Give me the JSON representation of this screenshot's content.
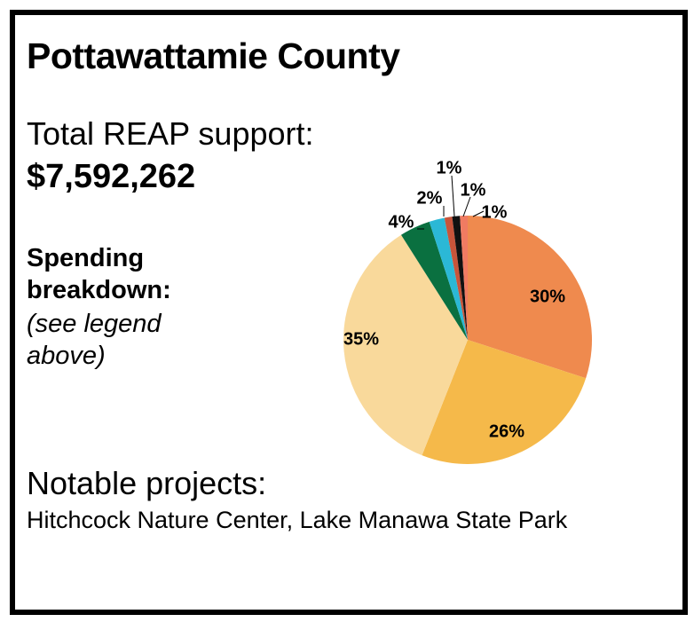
{
  "title": "Pottawattamie County",
  "support": {
    "label": "Total REAP support:",
    "value": "$7,592,262"
  },
  "breakdown": {
    "label": "Spending breakdown:",
    "note": "(see legend above)"
  },
  "projects": {
    "label": "Notable projects:",
    "text": "Hitchcock Nature Center, Lake Manawa State Park"
  },
  "chart_data": {
    "type": "pie",
    "title": "",
    "categories": [
      "",
      "",
      "",
      "",
      "",
      "",
      "",
      ""
    ],
    "values": [
      30,
      26,
      35,
      4,
      2,
      1,
      1,
      1
    ],
    "labels": [
      "30%",
      "26%",
      "35%",
      "4%",
      "2%",
      "1%",
      "1%",
      "1%"
    ],
    "colors": [
      "#ef8a4e",
      "#f5b94a",
      "#f9d99b",
      "#0a7040",
      "#2bb8d6",
      "#c8543a",
      "#111111",
      "#f07b62"
    ],
    "legend": "none"
  }
}
